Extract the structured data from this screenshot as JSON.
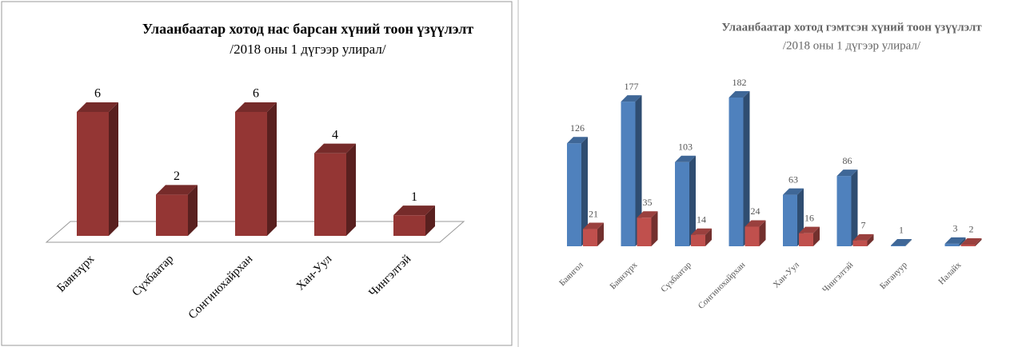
{
  "chart_data": [
    {
      "type": "bar",
      "title": "Улаанбаатар хотод нас барсан хүний тоон үзүүлэлт",
      "subtitle": "/2018 оны 1 дүгээр улирал/",
      "categories": [
        "Баянзүрх",
        "Сүхбаатар",
        "Сонгинохайрхан",
        "Хан-Уул",
        "Чингэлтэй"
      ],
      "series": [
        {
          "color": "#943634",
          "values": [
            6,
            2,
            6,
            4,
            1
          ]
        }
      ]
    },
    {
      "type": "bar",
      "title": "Улаанбаатар  хотод гэмтсэн хүний тоон үзүүлэлт",
      "subtitle": "/2018 оны 1 дүгээр улирал/",
      "categories": [
        "Баянгол",
        "Баянзүрх",
        "Сүхбаатар",
        "Сонгинохайрхан",
        "Хан-Уул",
        "Чингэлтэй",
        "Багануур",
        "Налайх"
      ],
      "series": [
        {
          "color": "#4f81bd",
          "values": [
            126,
            177,
            103,
            182,
            63,
            86,
            1,
            3
          ]
        },
        {
          "color": "#c0504d",
          "values": [
            21,
            35,
            14,
            24,
            16,
            7,
            null,
            2
          ]
        }
      ]
    }
  ]
}
